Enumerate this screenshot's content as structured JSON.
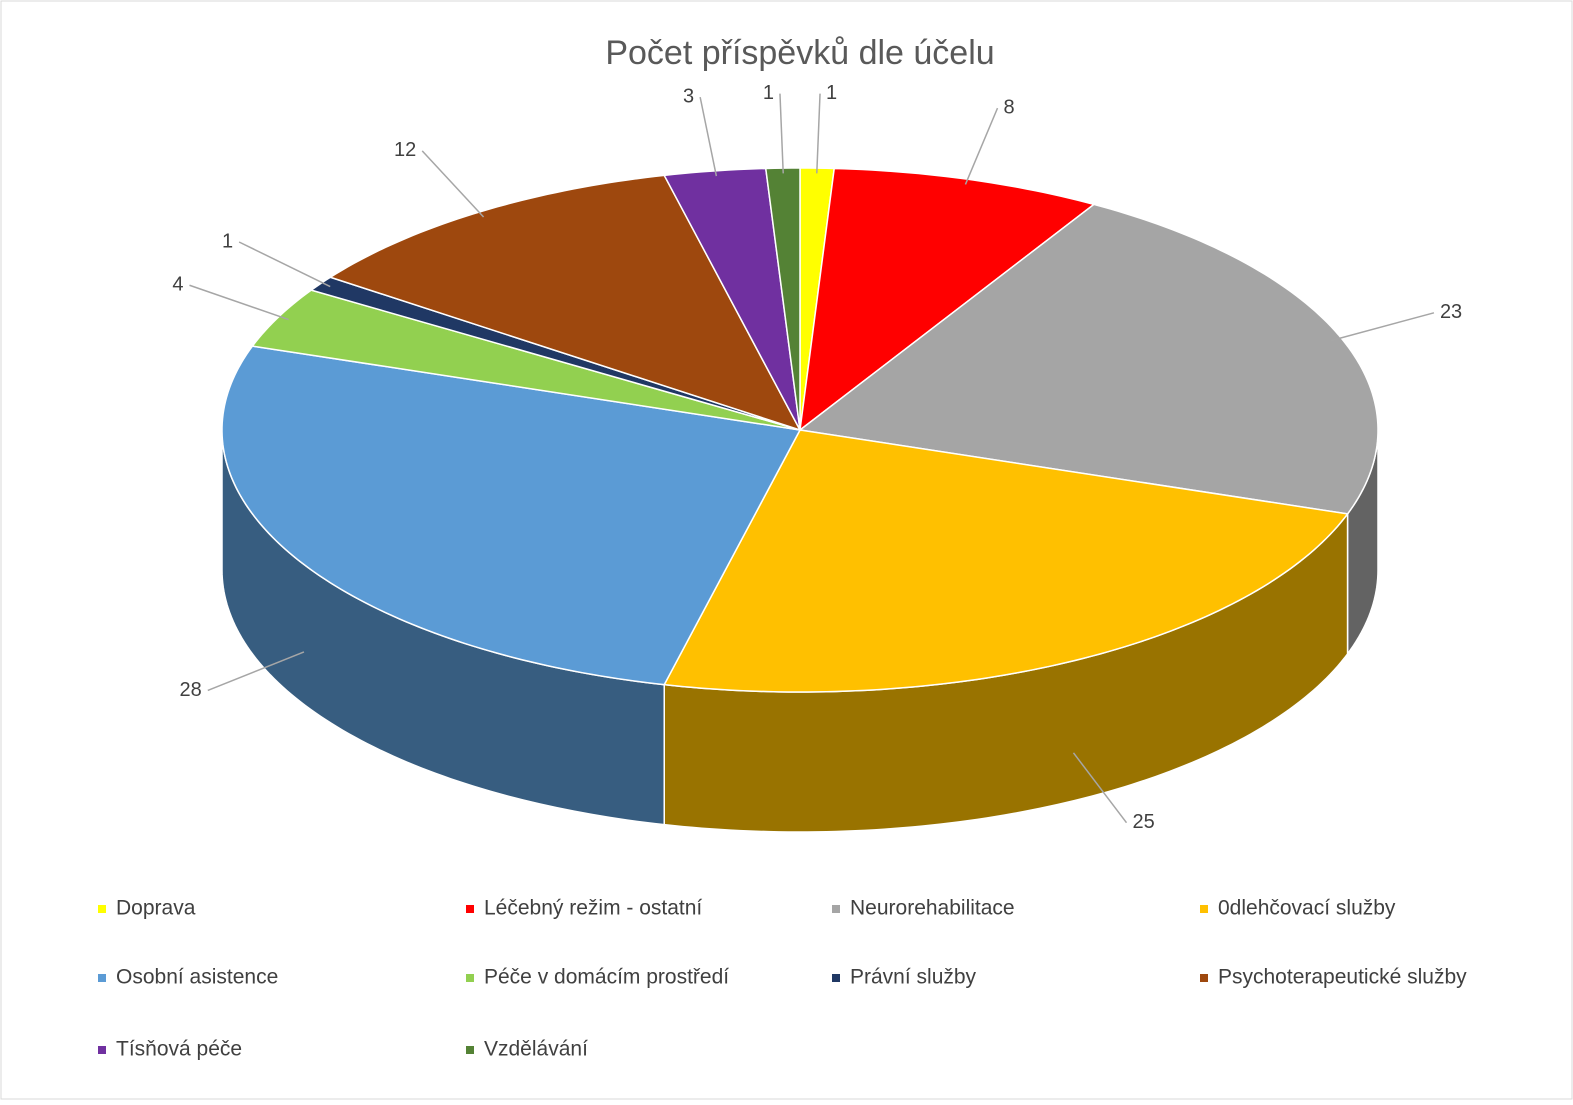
{
  "chart_data": {
    "type": "pie3d",
    "title": "Počet příspěvků dle účelu",
    "categories": [
      "Doprava",
      "Léčebný režim - ostatní",
      "Neurorehabilitace",
      "0dlehčovací služby",
      "Osobní asistence",
      "Péče v domácím prostředí",
      "Právní služby",
      "Psychoterapeutické služby",
      "Tísňová péče",
      "Vzdělávání"
    ],
    "values": [
      1,
      8,
      23,
      25,
      28,
      4,
      1,
      12,
      3,
      1
    ],
    "colors": [
      "#ffff00",
      "#ff0000",
      "#a5a5a5",
      "#ffc000",
      "#5b9bd5",
      "#92d050",
      "#203864",
      "#9e480e",
      "#7030a0",
      "#548235"
    ],
    "legend": "bottom"
  }
}
